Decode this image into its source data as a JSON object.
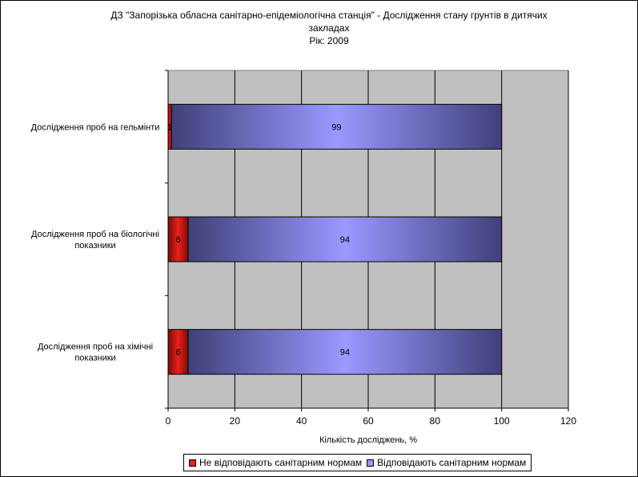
{
  "title": {
    "line1": "ДЗ \"Запорізька обласна санітарно-епідеміологічна станція\" -  Дослідження стану грунтів в дитячих",
    "line2": "закладах",
    "line3": "Рік: 2009"
  },
  "chart_data": {
    "type": "bar",
    "orientation": "horizontal",
    "stacked": true,
    "categories": [
      "Дослідження проб на гельмінти",
      "Дослідження проб на біологічні показники",
      "Дослідження проб на хімічні показники"
    ],
    "series": [
      {
        "name": "Не відповідають санітарним нормам",
        "values": [
          1,
          6,
          6
        ],
        "color": "#e8201a"
      },
      {
        "name": "Відповідають санітарним нормам",
        "values": [
          99,
          94,
          94
        ],
        "color": "#9999ff"
      }
    ],
    "data_labels": [
      [
        "1",
        "99"
      ],
      [
        "6",
        "94"
      ],
      [
        "6",
        "94"
      ]
    ],
    "xlabel": "Кількість досліджень, %",
    "xlim": [
      0,
      120
    ],
    "xticks": [
      0,
      20,
      40,
      60,
      80,
      100,
      120
    ],
    "plot_background": "#c0c0c0",
    "gridlines": true,
    "legend_position": "bottom"
  }
}
